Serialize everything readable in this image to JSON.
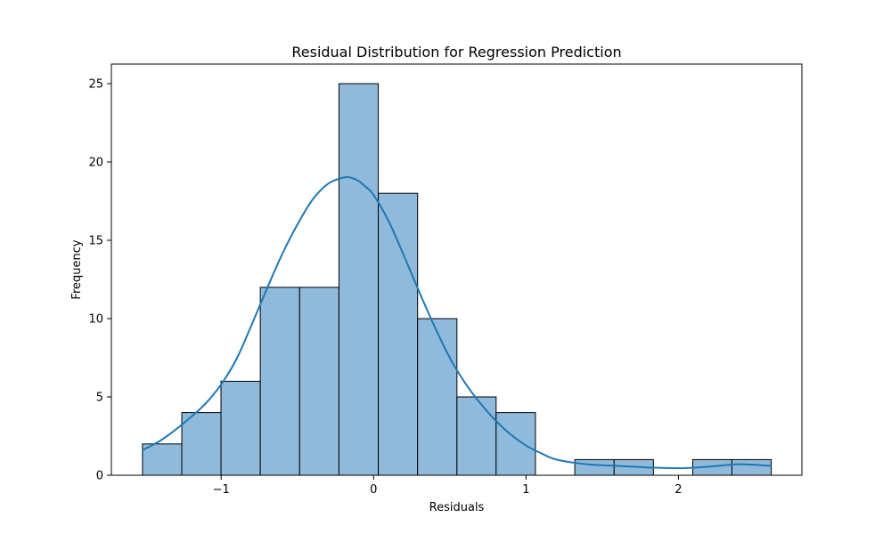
{
  "chart_data": {
    "type": "bar",
    "title": "Residual Distribution for Regression Prediction",
    "xlabel": "Residuals",
    "ylabel": "Frequency",
    "bin_edges": [
      -1.516,
      -1.258,
      -1.001,
      -0.743,
      -0.485,
      -0.227,
      0.031,
      0.289,
      0.547,
      0.804,
      1.062,
      1.32,
      1.578,
      1.836,
      2.094,
      2.351,
      2.609
    ],
    "counts": [
      2,
      4,
      6,
      12,
      12,
      25,
      18,
      10,
      5,
      4,
      0,
      1,
      1,
      0,
      1,
      1
    ],
    "kde": {
      "x": [
        -1.516,
        -1.4,
        -1.3,
        -1.2,
        -1.1,
        -1.0,
        -0.9,
        -0.8,
        -0.7,
        -0.6,
        -0.5,
        -0.4,
        -0.3,
        -0.2,
        -0.15,
        -0.1,
        -0.05,
        0.0,
        0.1,
        0.2,
        0.3,
        0.4,
        0.5,
        0.6,
        0.7,
        0.8,
        0.9,
        1.0,
        1.1,
        1.2,
        1.4,
        1.6,
        1.8,
        2.0,
        2.2,
        2.4,
        2.609
      ],
      "y": [
        1.6,
        2.2,
        2.9,
        3.7,
        4.6,
        5.8,
        7.4,
        9.6,
        11.9,
        14.1,
        16.0,
        17.6,
        18.6,
        19.0,
        19.0,
        18.8,
        18.4,
        17.9,
        16.2,
        14.0,
        11.7,
        9.5,
        7.5,
        5.9,
        4.6,
        3.5,
        2.6,
        1.9,
        1.4,
        1.0,
        0.7,
        0.6,
        0.5,
        0.45,
        0.55,
        0.7,
        0.6
      ]
    },
    "xlim": [
      -1.72,
      2.81
    ],
    "ylim": [
      0,
      26.25
    ],
    "xticks": [
      -1,
      0,
      1,
      2
    ],
    "xtick_labels": [
      "−1",
      "0",
      "1",
      "2"
    ],
    "yticks": [
      0,
      5,
      10,
      15,
      20,
      25
    ],
    "ytick_labels": [
      "0",
      "5",
      "10",
      "15",
      "20",
      "25"
    ],
    "grid": false,
    "colors": {
      "bar_fill": "#8fbadb",
      "bar_edge": "#000000",
      "kde_line": "#1f77b4",
      "axes": "#000000"
    }
  }
}
